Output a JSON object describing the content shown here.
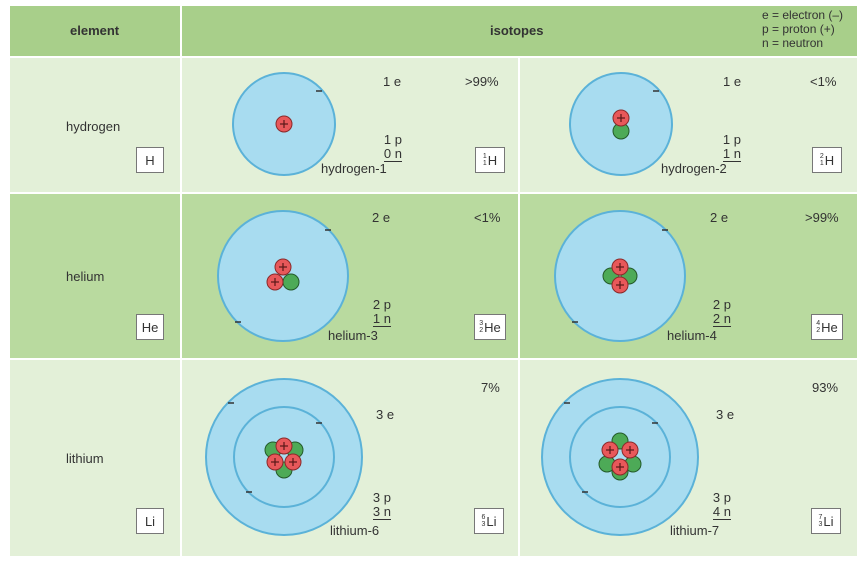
{
  "header": {
    "element_label": "element",
    "isotopes_label": "isotopes",
    "legend": [
      "e = electron (–)",
      "p = proton (+)",
      "n = neutron"
    ]
  },
  "rows": [
    {
      "element": "hydrogen",
      "symbol": "H",
      "isotopes": [
        {
          "electrons": "1 e",
          "abundance": ">99%",
          "protons": "1 p",
          "neutrons": "0 n",
          "name": "hydrogen-1",
          "mass": "1",
          "atomic": "1",
          "sym": "H"
        },
        {
          "electrons": "1 e",
          "abundance": "<1%",
          "protons": "1 p",
          "neutrons": "1 n",
          "name": "hydrogen-2",
          "mass": "2",
          "atomic": "1",
          "sym": "H"
        }
      ]
    },
    {
      "element": "helium",
      "symbol": "He",
      "isotopes": [
        {
          "electrons": "2 e",
          "abundance": "<1%",
          "protons": "2 p",
          "neutrons": "1 n",
          "name": "helium-3",
          "mass": "3",
          "atomic": "2",
          "sym": "He"
        },
        {
          "electrons": "2 e",
          "abundance": ">99%",
          "protons": "2 p",
          "neutrons": "2 n",
          "name": "helium-4",
          "mass": "4",
          "atomic": "2",
          "sym": "He"
        }
      ]
    },
    {
      "element": "lithium",
      "symbol": "Li",
      "isotopes": [
        {
          "electrons": "3 e",
          "abundance": "7%",
          "protons": "3 p",
          "neutrons": "3 n",
          "name": "lithium-6",
          "mass": "6",
          "atomic": "3",
          "sym": "Li"
        },
        {
          "electrons": "3 e",
          "abundance": "93%",
          "protons": "3 p",
          "neutrons": "4 n",
          "name": "lithium-7",
          "mass": "7",
          "atomic": "3",
          "sym": "Li"
        }
      ]
    }
  ],
  "colors": {
    "orbit": "#a8dcf0",
    "orbit_stroke": "#5bb2d8",
    "proton": "#e8585a",
    "neutron": "#4daa57"
  }
}
